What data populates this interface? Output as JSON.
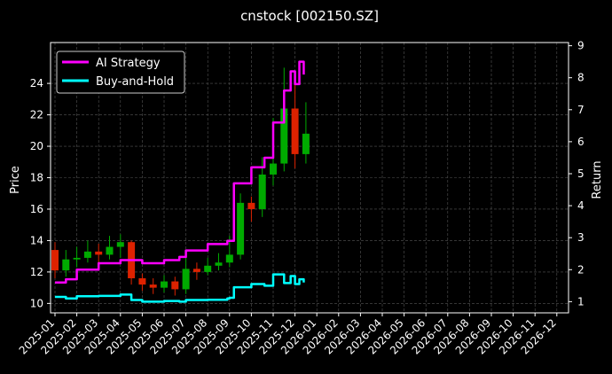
{
  "chart_data": {
    "type": "line",
    "title": "cnstock [002150.SZ]",
    "ylabel": "Price",
    "y2label": "Return",
    "ylim": [
      9.4,
      26.6
    ],
    "y2lim": [
      0.65,
      9.1
    ],
    "yticks": [
      10,
      12,
      14,
      16,
      18,
      20,
      22,
      24
    ],
    "y2ticks": [
      1,
      2,
      3,
      4,
      5,
      6,
      7,
      8,
      9
    ],
    "x_categories": [
      "2025-01",
      "2025-02",
      "2025-03",
      "2025-04",
      "2025-05",
      "2025-06",
      "2025-07",
      "2025-08",
      "2025-09",
      "2025-10",
      "2025-11",
      "2025-12",
      "2026-01",
      "2026-02",
      "2026-03",
      "2026-04",
      "2026-05",
      "2026-06",
      "2026-07",
      "2026-08",
      "2026-09",
      "2026-10",
      "2026-11",
      "2026-12"
    ],
    "grid": true,
    "legend_position": "top-left",
    "colors": {
      "background": "#000000",
      "up": "#00aa00",
      "down": "#dd2200",
      "strategy": "#ff00ff",
      "buyhold": "#00ffff",
      "grid": "#555555"
    },
    "price_candles_monthly": [
      {
        "month": 0.0,
        "open": 13.4,
        "close": 12.1,
        "high": 13.9,
        "low": 11.6
      },
      {
        "month": 0.5,
        "open": 12.1,
        "close": 12.8,
        "high": 13.4,
        "low": 11.7
      },
      {
        "month": 1.0,
        "open": 12.8,
        "close": 12.9,
        "high": 13.6,
        "low": 12.3
      },
      {
        "month": 1.5,
        "open": 12.9,
        "close": 13.3,
        "high": 14.0,
        "low": 12.6
      },
      {
        "month": 2.0,
        "open": 13.3,
        "close": 13.1,
        "high": 13.8,
        "low": 12.5
      },
      {
        "month": 2.5,
        "open": 13.1,
        "close": 13.6,
        "high": 14.3,
        "low": 12.8
      },
      {
        "month": 3.0,
        "open": 13.6,
        "close": 13.9,
        "high": 14.4,
        "low": 12.9
      },
      {
        "month": 3.5,
        "open": 13.9,
        "close": 11.6,
        "high": 14.0,
        "low": 11.2
      },
      {
        "month": 4.0,
        "open": 11.6,
        "close": 11.2,
        "high": 11.9,
        "low": 10.8
      },
      {
        "month": 4.5,
        "open": 11.2,
        "close": 11.0,
        "high": 11.6,
        "low": 10.6
      },
      {
        "month": 5.0,
        "open": 11.0,
        "close": 11.4,
        "high": 11.8,
        "low": 10.7
      },
      {
        "month": 5.5,
        "open": 11.4,
        "close": 10.9,
        "high": 11.7,
        "low": 10.5
      },
      {
        "month": 6.0,
        "open": 10.9,
        "close": 12.2,
        "high": 12.9,
        "low": 10.6
      },
      {
        "month": 6.5,
        "open": 12.2,
        "close": 12.0,
        "high": 12.6,
        "low": 11.5
      },
      {
        "month": 7.0,
        "open": 12.0,
        "close": 12.4,
        "high": 12.9,
        "low": 11.8
      },
      {
        "month": 7.5,
        "open": 12.4,
        "close": 12.6,
        "high": 13.2,
        "low": 12.1
      },
      {
        "month": 8.0,
        "open": 12.6,
        "close": 13.1,
        "high": 14.3,
        "low": 12.3
      },
      {
        "month": 8.5,
        "open": 13.1,
        "close": 16.4,
        "high": 17.0,
        "low": 12.8
      },
      {
        "month": 9.0,
        "open": 16.4,
        "close": 16.0,
        "high": 16.8,
        "low": 15.2
      },
      {
        "month": 9.5,
        "open": 16.0,
        "close": 18.2,
        "high": 19.3,
        "low": 15.5
      },
      {
        "month": 10.0,
        "open": 18.2,
        "close": 18.9,
        "high": 21.8,
        "low": 17.5
      },
      {
        "month": 10.5,
        "open": 18.9,
        "close": 22.4,
        "high": 25.0,
        "low": 18.4
      },
      {
        "month": 11.0,
        "open": 22.4,
        "close": 19.5,
        "high": 24.5,
        "low": 18.6
      },
      {
        "month": 11.5,
        "open": 19.5,
        "close": 20.8,
        "high": 22.8,
        "low": 18.9
      }
    ],
    "series": [
      {
        "name": "AI Strategy",
        "color": "#ff00ff",
        "axis": "right",
        "x_month": [
          0.0,
          0.5,
          1.0,
          2.0,
          3.0,
          3.5,
          4.0,
          5.0,
          5.7,
          6.0,
          7.0,
          7.9,
          8.0,
          8.2,
          9.0,
          9.6,
          10.0,
          10.5,
          10.8,
          11.0,
          11.2,
          11.4
        ],
        "values": [
          1.6,
          1.7,
          2.0,
          2.2,
          2.3,
          2.3,
          2.2,
          2.3,
          2.4,
          2.6,
          2.8,
          2.9,
          2.9,
          4.7,
          5.2,
          5.5,
          6.6,
          7.6,
          8.2,
          7.8,
          8.5,
          8.1
        ]
      },
      {
        "name": "Buy-and-Hold",
        "color": "#00ffff",
        "axis": "right",
        "x_month": [
          0.0,
          0.5,
          1.0,
          2.0,
          3.0,
          3.5,
          4.0,
          5.0,
          5.7,
          6.0,
          7.0,
          7.9,
          8.0,
          8.2,
          9.0,
          9.6,
          10.0,
          10.5,
          10.8,
          11.0,
          11.2,
          11.4
        ],
        "values": [
          1.15,
          1.1,
          1.17,
          1.18,
          1.22,
          1.05,
          1.0,
          1.02,
          1.0,
          1.05,
          1.06,
          1.1,
          1.12,
          1.45,
          1.55,
          1.5,
          1.85,
          1.58,
          1.8,
          1.55,
          1.7,
          1.6
        ]
      }
    ]
  }
}
